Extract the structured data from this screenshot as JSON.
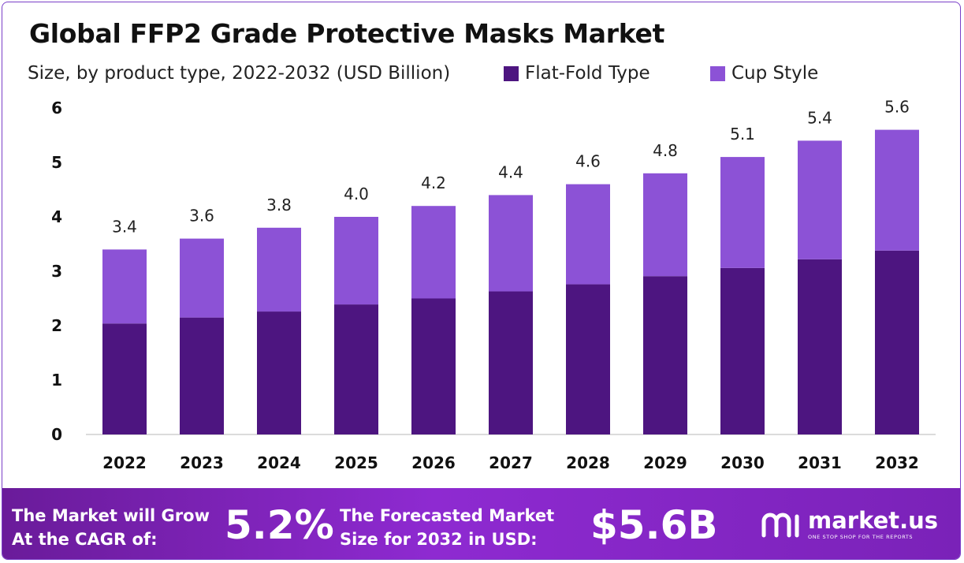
{
  "title": "Global FFP2 Grade Protective Masks Market",
  "subtitle": "Size, by product type, 2022-2032 (USD Billion)",
  "colors": {
    "flat_fold": "#4d1580",
    "cup_style": "#8c52d6",
    "banner": "#7a22b8"
  },
  "chart_data": {
    "type": "bar",
    "stacked": true,
    "categories": [
      "2022",
      "2023",
      "2024",
      "2025",
      "2026",
      "2027",
      "2028",
      "2029",
      "2030",
      "2031",
      "2032"
    ],
    "series": [
      {
        "name": "Flat-Fold Type",
        "values": [
          2.04,
          2.15,
          2.26,
          2.39,
          2.5,
          2.63,
          2.76,
          2.91,
          3.06,
          3.22,
          3.38
        ]
      },
      {
        "name": "Cup Style",
        "values": [
          1.36,
          1.45,
          1.54,
          1.61,
          1.7,
          1.77,
          1.84,
          1.89,
          2.04,
          2.18,
          2.22
        ]
      }
    ],
    "totals": [
      "3.4",
      "3.6",
      "3.8",
      "4.0",
      "4.2",
      "4.4",
      "4.6",
      "4.8",
      "5.1",
      "5.4",
      "5.6"
    ],
    "y_ticks": [
      0,
      1,
      2,
      3,
      4,
      5,
      6
    ],
    "ylim": [
      0,
      6
    ],
    "legend_position": "top-right",
    "grid": false
  },
  "banner": {
    "cagr_label_line1": "The Market will Grow",
    "cagr_label_line2": "At the CAGR of:",
    "cagr_value": "5.2%",
    "forecast_label_line1": "The Forecasted Market",
    "forecast_label_line2": "Size for 2032 in USD:",
    "forecast_value": "$5.6B",
    "logo_name": "market.us",
    "logo_tagline": "ONE STOP SHOP FOR THE REPORTS"
  }
}
